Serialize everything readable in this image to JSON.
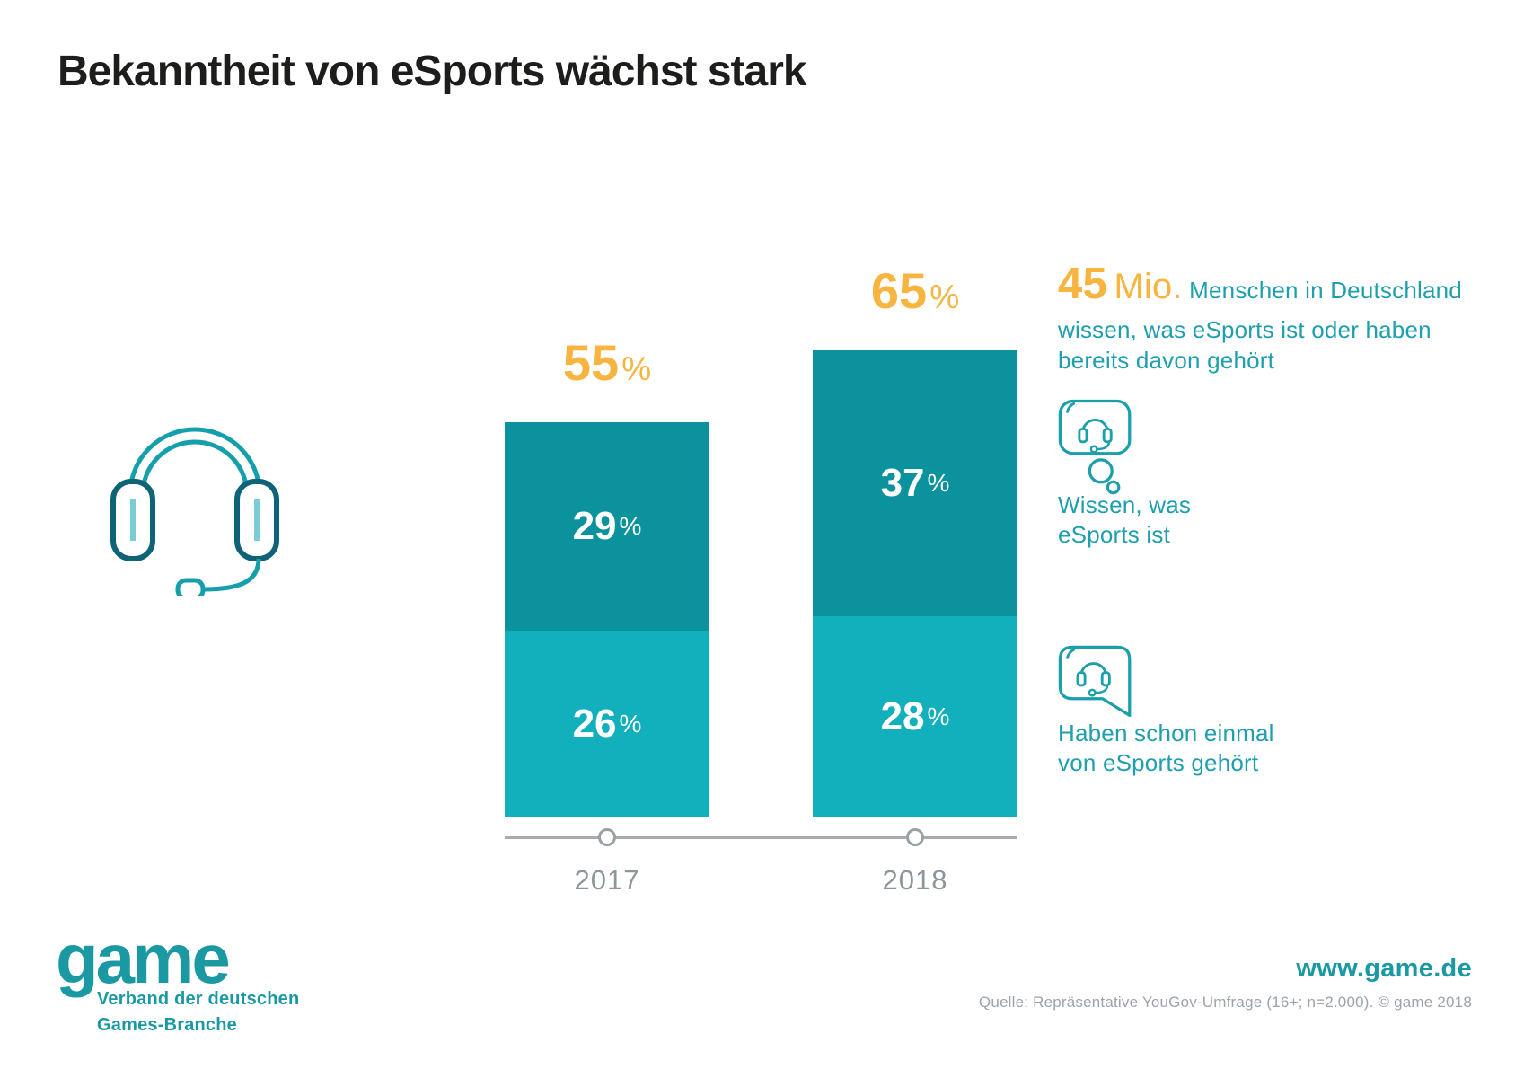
{
  "title": "Bekanntheit von eSports wächst stark",
  "chart_data": {
    "type": "bar",
    "stacked": true,
    "categories": [
      "2017",
      "2018"
    ],
    "series": [
      {
        "name": "Wissen, was eSports ist",
        "color": "#0b929c",
        "values": [
          29,
          37
        ]
      },
      {
        "name": "Haben schon einmal von eSports gehört",
        "color": "#12afbc",
        "values": [
          26,
          28
        ]
      }
    ],
    "totals": [
      55,
      65
    ],
    "unit": "%",
    "title": "Bekanntheit von eSports wächst stark",
    "xlabel": "",
    "ylabel": "",
    "ylim": [
      0,
      70
    ],
    "grid": false,
    "legend_position": "right",
    "value_labels": "inside segments, white; totals above bars in orange"
  },
  "highlight": {
    "number": "45",
    "unit": "Mio.",
    "description": "Menschen in Deutschland wissen, was eSports ist oder haben bereits davon gehört"
  },
  "legend": [
    {
      "icon": "thought-bubble-headset-icon",
      "label": "Wissen, was\neSports ist"
    },
    {
      "icon": "speech-bubble-headset-icon",
      "label": "Haben schon einmal\nvon eSports gehört"
    }
  ],
  "footer": {
    "logo_text": "game",
    "logo_subtitle": "Verband der deutschen\nGames-Branche",
    "website": "www.game.de",
    "source": "Quelle: Repräsentative YouGov-Umfrage (16+; n=2.000). © game 2018"
  },
  "colors": {
    "teal_dark": "#0b929c",
    "teal_light": "#12afbc",
    "teal_text": "#1f9fae",
    "teal_logo": "#1b99a3",
    "orange": "#f8b441",
    "axis_gray": "#9aa0a3",
    "label_gray": "#8d969b",
    "source_gray": "#9ba3ab",
    "title_black": "#1d1d1b"
  }
}
